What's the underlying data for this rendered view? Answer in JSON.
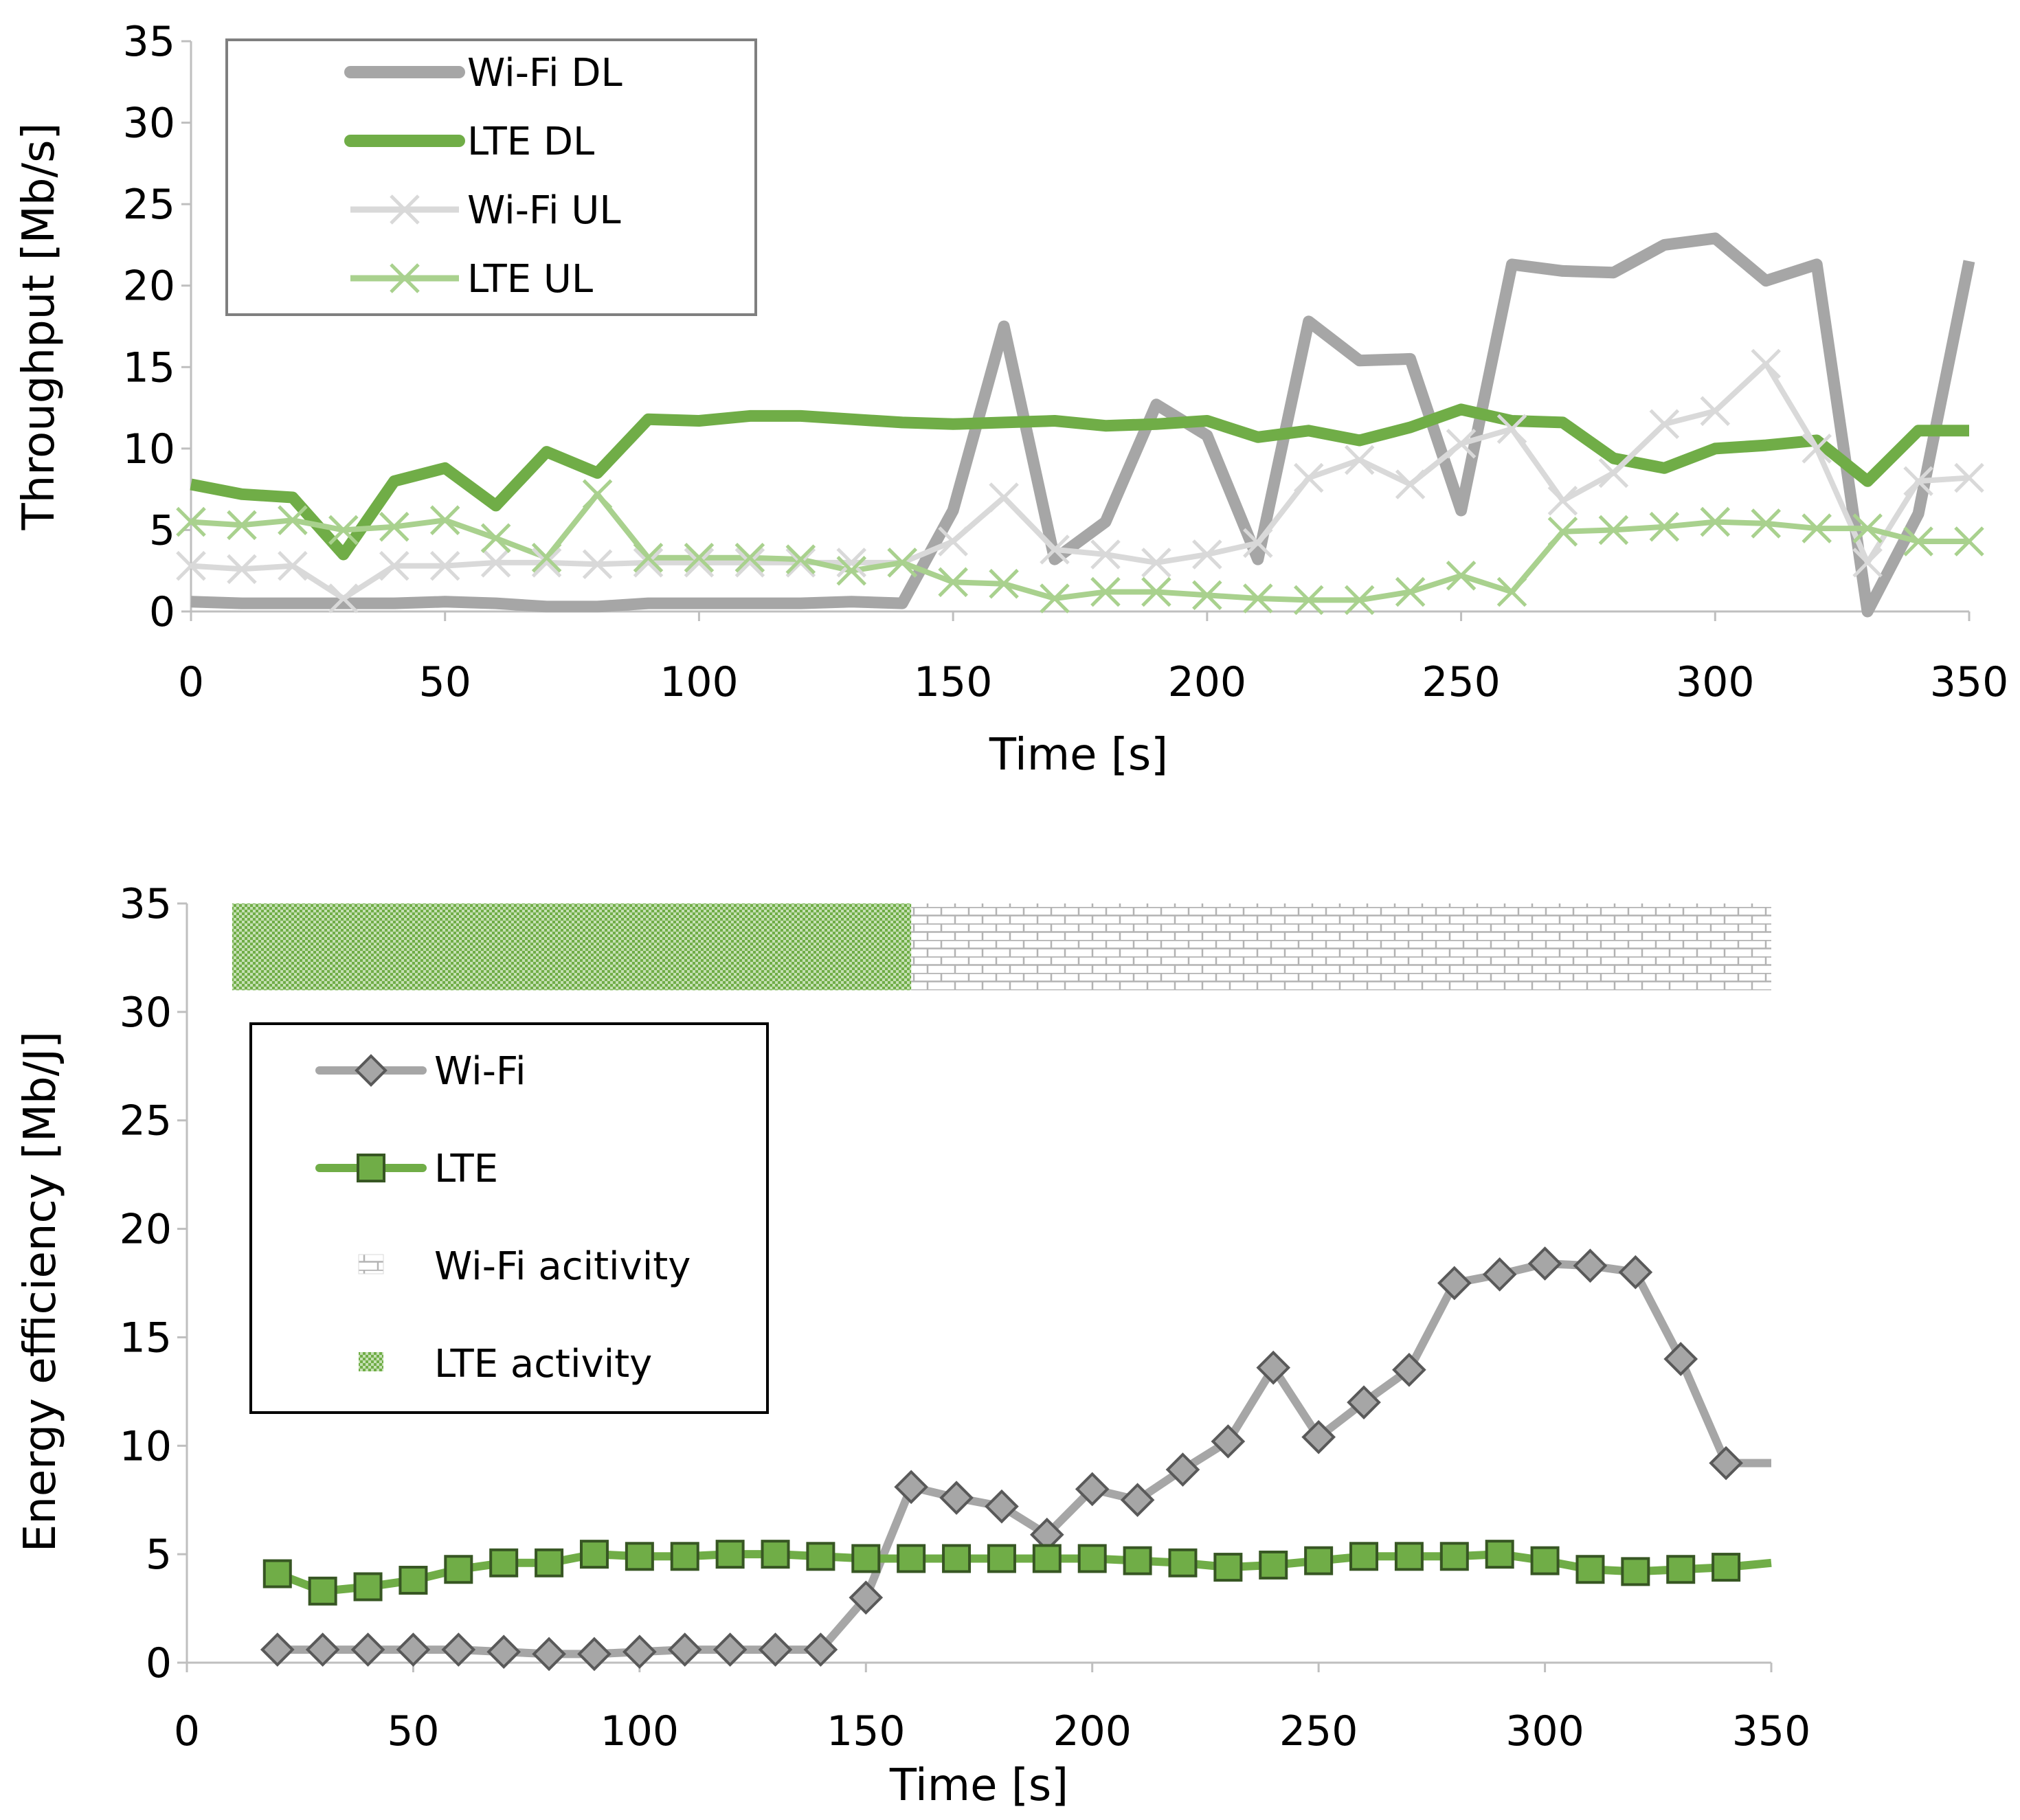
{
  "chart_data": [
    {
      "type": "line",
      "ylabel": "Throughput [Mb/s]",
      "xlabel": "Time [s]",
      "xlim": [
        0,
        350
      ],
      "ylim": [
        0,
        35
      ],
      "xticks": [
        0,
        50,
        100,
        150,
        200,
        250,
        300,
        350
      ],
      "yticks": [
        0,
        5,
        10,
        15,
        20,
        25,
        30,
        35
      ],
      "legend_position": "top-left",
      "x": [
        0,
        10,
        20,
        30,
        40,
        50,
        60,
        70,
        80,
        90,
        100,
        110,
        120,
        130,
        140,
        150,
        160,
        170,
        180,
        190,
        200,
        210,
        220,
        230,
        240,
        250,
        260,
        270,
        280,
        290,
        300,
        310,
        320,
        330,
        340,
        350
      ],
      "series": [
        {
          "name": "Wi-Fi DL",
          "color": "#a6a6a6",
          "marker": "none",
          "values": [
            0.6,
            0.5,
            0.5,
            0.5,
            0.5,
            0.6,
            0.5,
            0.3,
            0.3,
            0.5,
            0.5,
            0.5,
            0.5,
            0.6,
            0.5,
            6.2,
            17.5,
            3.2,
            5.5,
            12.7,
            10.8,
            3.2,
            17.8,
            15.4,
            15.5,
            6.2,
            21.3,
            20.9,
            20.8,
            22.5,
            22.9,
            20.3,
            21.3,
            0.0,
            6.0,
            21.5
          ]
        },
        {
          "name": "LTE DL",
          "color": "#70ad47",
          "marker": "none",
          "values": [
            7.8,
            7.2,
            7.0,
            3.5,
            8.0,
            8.8,
            6.5,
            9.8,
            8.5,
            11.8,
            11.7,
            12.0,
            12.0,
            11.8,
            11.6,
            11.5,
            11.6,
            11.7,
            11.4,
            11.5,
            11.7,
            10.7,
            11.1,
            10.5,
            11.3,
            12.4,
            11.7,
            11.6,
            9.4,
            8.8,
            10.0,
            10.2,
            10.5,
            8.0,
            11.1,
            11.1
          ]
        },
        {
          "name": "Wi-Fi UL",
          "color": "#d9d9d9",
          "marker": "x",
          "values": [
            2.8,
            2.6,
            2.8,
            0.8,
            2.8,
            2.8,
            3.0,
            3.0,
            2.9,
            3.0,
            3.0,
            3.0,
            3.0,
            3.0,
            3.0,
            4.3,
            7.0,
            3.8,
            3.5,
            3.0,
            3.5,
            4.2,
            8.2,
            9.3,
            7.8,
            10.3,
            11.2,
            6.8,
            8.5,
            11.5,
            12.3,
            15.2,
            10.0,
            3.0,
            8.0,
            8.2
          ]
        },
        {
          "name": "LTE UL",
          "color": "#a9d18e",
          "marker": "x",
          "values": [
            5.5,
            5.3,
            5.6,
            5.0,
            5.2,
            5.6,
            4.5,
            3.3,
            7.2,
            3.3,
            3.3,
            3.3,
            3.2,
            2.5,
            3.0,
            1.8,
            1.7,
            0.8,
            1.2,
            1.2,
            1.0,
            0.8,
            0.7,
            0.7,
            1.2,
            2.2,
            1.2,
            4.9,
            5.0,
            5.2,
            5.5,
            5.4,
            5.1,
            5.1,
            4.3,
            4.3
          ]
        }
      ]
    },
    {
      "type": "line",
      "ylabel": "Energy efficiency [Mb/J]",
      "xlabel": "Time [s]",
      "xlim": [
        0,
        350
      ],
      "ylim": [
        0,
        35
      ],
      "xticks": [
        0,
        50,
        100,
        150,
        200,
        250,
        300,
        350
      ],
      "yticks": [
        0,
        5,
        10,
        15,
        20,
        25,
        30,
        35
      ],
      "legend_position": "middle-left",
      "x": [
        20,
        30,
        40,
        50,
        60,
        70,
        80,
        90,
        100,
        110,
        120,
        130,
        140,
        150,
        160,
        170,
        180,
        190,
        200,
        210,
        220,
        230,
        240,
        250,
        260,
        270,
        280,
        290,
        300,
        310,
        320,
        330,
        340,
        350
      ],
      "series": [
        {
          "name": "Wi-Fi",
          "color": "#a6a6a6",
          "marker": "diamond",
          "marker_fill": "#a6a6a6",
          "marker_edge": "#595959",
          "values": [
            0.6,
            0.6,
            0.6,
            0.6,
            0.6,
            0.5,
            0.4,
            0.4,
            0.5,
            0.6,
            0.6,
            0.6,
            0.6,
            3.0,
            8.1,
            7.6,
            7.2,
            5.9,
            8.0,
            7.5,
            8.9,
            10.2,
            13.6,
            10.4,
            12.0,
            13.5,
            17.5,
            17.9,
            18.4,
            18.3,
            18.0,
            14.0,
            9.2,
            9.2
          ],
          "marker_mask": [
            true,
            true,
            true,
            true,
            true,
            true,
            true,
            true,
            true,
            true,
            true,
            true,
            true,
            true,
            true,
            true,
            true,
            true,
            true,
            true,
            true,
            true,
            true,
            true,
            true,
            true,
            true,
            true,
            true,
            true,
            true,
            true,
            true,
            false
          ]
        },
        {
          "name": "LTE",
          "color": "#70ad47",
          "marker": "square",
          "marker_fill": "#70ad47",
          "marker_edge": "#375623",
          "values": [
            4.1,
            3.3,
            3.5,
            3.8,
            4.3,
            4.6,
            4.6,
            5.0,
            4.9,
            4.9,
            5.0,
            5.0,
            4.9,
            4.8,
            4.8,
            4.8,
            4.8,
            4.8,
            4.8,
            4.7,
            4.6,
            4.4,
            4.5,
            4.7,
            4.9,
            4.9,
            4.9,
            5.0,
            4.7,
            4.3,
            4.2,
            4.3,
            4.4,
            4.6
          ],
          "marker_mask": [
            true,
            true,
            true,
            true,
            true,
            true,
            true,
            true,
            true,
            true,
            true,
            true,
            true,
            true,
            true,
            true,
            true,
            true,
            true,
            true,
            true,
            true,
            true,
            true,
            true,
            true,
            true,
            true,
            true,
            true,
            true,
            true,
            true,
            false
          ]
        },
        {
          "name": "Wi-Fi acitivity",
          "type": "band",
          "x_range": [
            160,
            350
          ],
          "y_range": [
            31,
            35
          ],
          "pattern": "brick",
          "color": "#bfbfbf"
        },
        {
          "name": "LTE activity",
          "type": "band",
          "x_range": [
            10,
            160
          ],
          "y_range": [
            31,
            35
          ],
          "pattern": "checker",
          "color": "#70ad47"
        }
      ]
    }
  ]
}
